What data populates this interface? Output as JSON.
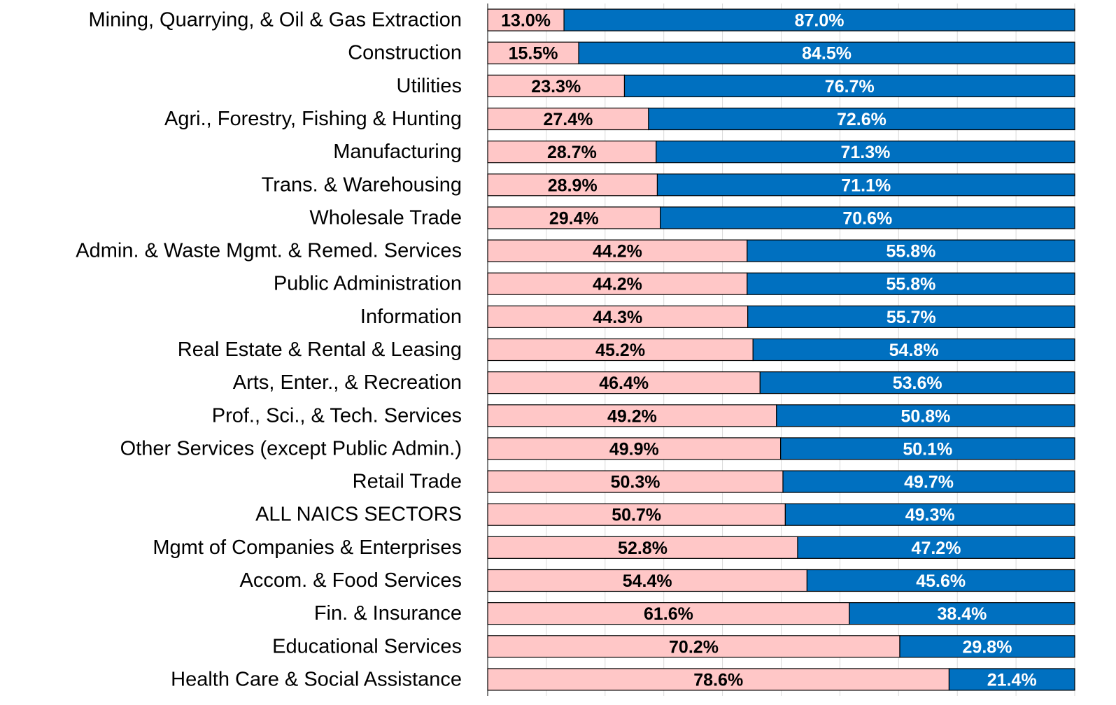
{
  "chart_data": {
    "type": "stacked_barh",
    "categories": [
      "Mining, Quarrying, & Oil & Gas Extraction",
      "Construction",
      "Utilities",
      "Agri., Forestry, Fishing & Hunting",
      "Manufacturing",
      "Trans. & Warehousing",
      "Wholesale Trade",
      "Admin. & Waste Mgmt. & Remed. Services",
      "Public Administration",
      "Information",
      "Real Estate & Rental & Leasing",
      "Arts, Enter., & Recreation",
      "Prof., Sci., & Tech. Services",
      "Other Services (except Public Admin.)",
      "Retail Trade",
      "ALL NAICS SECTORS",
      "Mgmt of Companies & Enterprises",
      "Accom. & Food Services",
      "Fin. & Insurance",
      "Educational Services",
      "Health Care & Social Assistance"
    ],
    "series": [
      {
        "color": "#ffc7c7",
        "label_color": "#000000",
        "values": [
          13.0,
          15.5,
          23.3,
          27.4,
          28.7,
          28.9,
          29.4,
          44.2,
          44.2,
          44.3,
          45.2,
          46.4,
          49.2,
          49.9,
          50.3,
          50.7,
          52.8,
          54.4,
          61.6,
          70.2,
          78.6
        ],
        "value_labels": [
          "13.0%",
          "15.5%",
          "23.3%",
          "27.4%",
          "28.7%",
          "28.9%",
          "29.4%",
          "44.2%",
          "44.2%",
          "44.3%",
          "45.2%",
          "46.4%",
          "49.2%",
          "49.9%",
          "50.3%",
          "50.7%",
          "52.8%",
          "54.4%",
          "61.6%",
          "70.2%",
          "78.6%"
        ]
      },
      {
        "color": "#0070c0",
        "label_color": "#ffffff",
        "values": [
          87.0,
          84.5,
          76.7,
          72.6,
          71.3,
          71.1,
          70.6,
          55.8,
          55.8,
          55.7,
          54.8,
          53.6,
          50.8,
          50.1,
          49.7,
          49.3,
          47.2,
          45.6,
          38.4,
          29.8,
          21.4
        ],
        "value_labels": [
          "87.0%",
          "84.5%",
          "76.7%",
          "72.6%",
          "71.3%",
          "71.1%",
          "70.6%",
          "55.8%",
          "55.8%",
          "55.7%",
          "54.8%",
          "53.6%",
          "50.8%",
          "50.1%",
          "49.7%",
          "49.3%",
          "47.2%",
          "45.6%",
          "38.4%",
          "29.8%",
          "21.4%"
        ]
      }
    ],
    "xlim": [
      0,
      100
    ],
    "xticks": [
      0,
      10,
      20,
      30,
      40,
      50,
      60,
      70,
      80,
      90,
      100
    ],
    "grid": true
  }
}
